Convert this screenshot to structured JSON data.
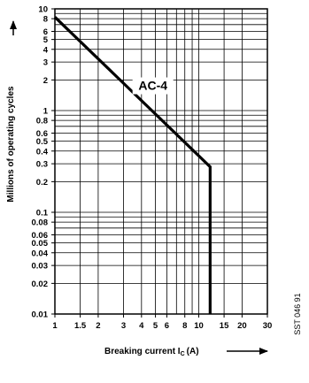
{
  "chart_data": {
    "type": "line",
    "x_scale": "log",
    "y_scale": "log",
    "xlim": [
      1,
      30
    ],
    "ylim": [
      0.01,
      10
    ],
    "grid": true,
    "xlabel": "Breaking current I",
    "xlabel_subscript": "C",
    "xlabel_unit": "(A)",
    "ylabel": "Millions of operating cycles",
    "x_ticks": [
      {
        "v": 1,
        "label": "1"
      },
      {
        "v": 1.5,
        "label": "1.5"
      },
      {
        "v": 2,
        "label": "2"
      },
      {
        "v": 3,
        "label": "3"
      },
      {
        "v": 4,
        "label": "4"
      },
      {
        "v": 5,
        "label": "5"
      },
      {
        "v": 6,
        "label": "6"
      },
      {
        "v": 8,
        "label": "8"
      },
      {
        "v": 10,
        "label": "10"
      },
      {
        "v": 15,
        "label": "15"
      },
      {
        "v": 20,
        "label": "20"
      },
      {
        "v": 30,
        "label": "30"
      }
    ],
    "y_ticks": [
      {
        "v": 0.01,
        "label": "0.01"
      },
      {
        "v": 0.02,
        "label": "0.02"
      },
      {
        "v": 0.03,
        "label": "0.03"
      },
      {
        "v": 0.04,
        "label": "0.04"
      },
      {
        "v": 0.05,
        "label": "0.05"
      },
      {
        "v": 0.06,
        "label": "0.06"
      },
      {
        "v": 0.08,
        "label": "0.08"
      },
      {
        "v": 0.1,
        "label": "0.1"
      },
      {
        "v": 0.2,
        "label": "0.2"
      },
      {
        "v": 0.3,
        "label": "0.3"
      },
      {
        "v": 0.4,
        "label": "0.4"
      },
      {
        "v": 0.5,
        "label": "0.5"
      },
      {
        "v": 0.6,
        "label": "0.6"
      },
      {
        "v": 0.8,
        "label": "0.8"
      },
      {
        "v": 1,
        "label": "1"
      },
      {
        "v": 2,
        "label": "2"
      },
      {
        "v": 3,
        "label": "3"
      },
      {
        "v": 4,
        "label": "4"
      },
      {
        "v": 5,
        "label": "5"
      },
      {
        "v": 6,
        "label": "6"
      },
      {
        "v": 8,
        "label": "8"
      },
      {
        "v": 10,
        "label": "10"
      }
    ],
    "x_grid": [
      1,
      1.5,
      2,
      3,
      4,
      5,
      6,
      7,
      8,
      9,
      10,
      15,
      20,
      30
    ],
    "y_grid": [
      0.01,
      0.02,
      0.03,
      0.04,
      0.05,
      0.06,
      0.07,
      0.08,
      0.09,
      0.1,
      0.2,
      0.3,
      0.4,
      0.5,
      0.6,
      0.7,
      0.8,
      0.9,
      1,
      2,
      3,
      4,
      5,
      6,
      7,
      8,
      9,
      10
    ],
    "series": [
      {
        "name": "AC-4",
        "points": [
          {
            "x": 1,
            "y": 8.3
          },
          {
            "x": 12,
            "y": 0.28
          },
          {
            "x": 12,
            "y": 0.01
          }
        ]
      }
    ],
    "annotations": [
      {
        "text": "AC-4",
        "x": 4.8,
        "y": 1.6
      }
    ]
  },
  "side_note": "SST 046 91"
}
